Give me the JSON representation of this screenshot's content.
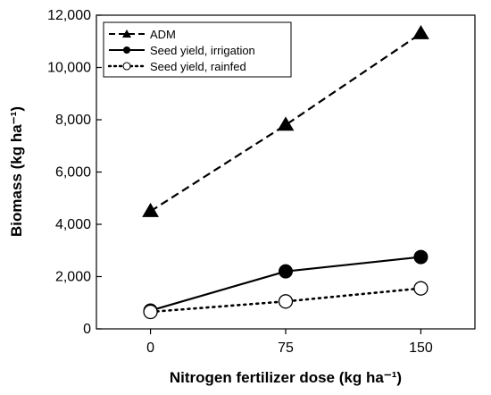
{
  "chart_data": {
    "type": "line",
    "title": "",
    "xlabel": "Nitrogen fertilizer dose (kg ha⁻¹)",
    "ylabel": "Biomass (kg ha⁻¹)",
    "x": [
      0,
      75,
      150
    ],
    "x_tick_labels": [
      "0",
      "75",
      "150"
    ],
    "ylim": [
      0,
      12000
    ],
    "y_ticks": [
      0,
      2000,
      4000,
      6000,
      8000,
      10000,
      12000
    ],
    "y_tick_labels": [
      "0",
      "2,000",
      "4,000",
      "6,000",
      "8,000",
      "10,000",
      "12,000"
    ],
    "grid": false,
    "legend_position": "top-left",
    "series": [
      {
        "name": "ADM",
        "values": [
          4500,
          7800,
          11300
        ],
        "line_style": "dashed",
        "marker": "filled-triangle",
        "color": "#000000"
      },
      {
        "name": "Seed yield, irrigation",
        "values": [
          700,
          2200,
          2750
        ],
        "line_style": "solid",
        "marker": "filled-circle",
        "color": "#000000"
      },
      {
        "name": "Seed yield, rainfed",
        "values": [
          650,
          1050,
          1550
        ],
        "line_style": "dotted",
        "marker": "open-circle",
        "color": "#000000"
      }
    ]
  }
}
